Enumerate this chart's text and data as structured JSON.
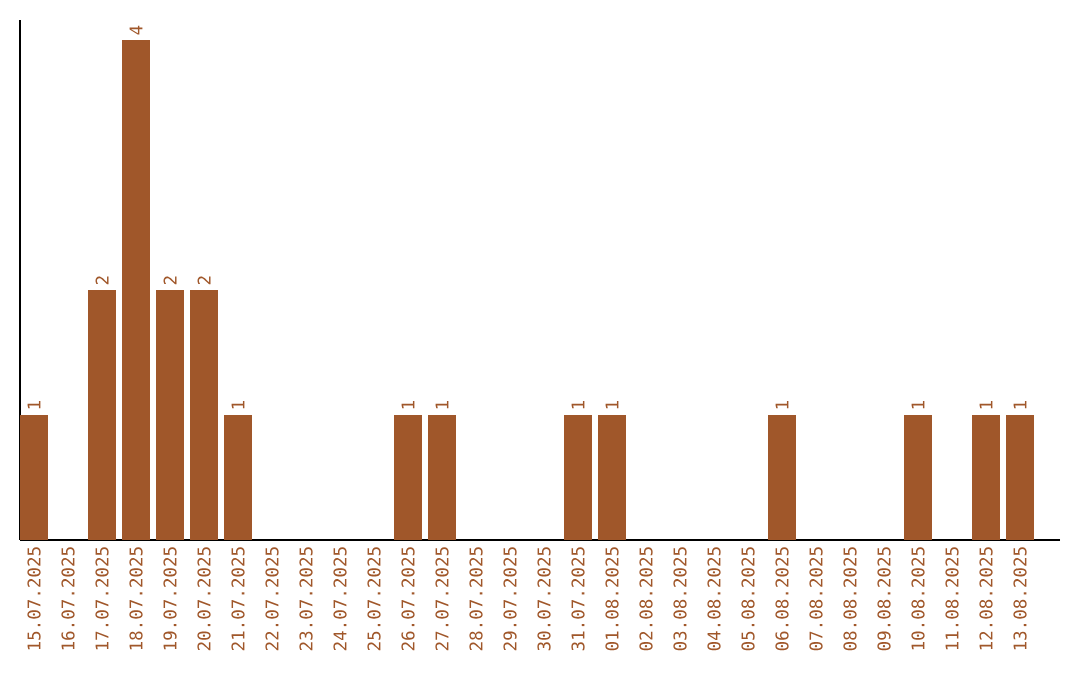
{
  "chart_data": {
    "type": "bar",
    "categories": [
      "15.07.2025",
      "16.07.2025",
      "17.07.2025",
      "18.07.2025",
      "19.07.2025",
      "20.07.2025",
      "21.07.2025",
      "22.07.2025",
      "23.07.2025",
      "24.07.2025",
      "25.07.2025",
      "26.07.2025",
      "27.07.2025",
      "28.07.2025",
      "29.07.2025",
      "30.07.2025",
      "31.07.2025",
      "01.08.2025",
      "02.08.2025",
      "03.08.2025",
      "04.08.2025",
      "05.08.2025",
      "06.08.2025",
      "07.08.2025",
      "08.08.2025",
      "09.08.2025",
      "10.08.2025",
      "11.08.2025",
      "12.08.2025",
      "13.08.2025"
    ],
    "values": [
      1,
      0,
      2,
      4,
      2,
      2,
      1,
      0,
      0,
      0,
      0,
      1,
      1,
      0,
      0,
      0,
      1,
      1,
      0,
      0,
      0,
      0,
      1,
      0,
      0,
      0,
      1,
      0,
      1,
      1
    ],
    "value_labels": [
      "1",
      null,
      "2",
      "4",
      "2",
      "2",
      "1",
      null,
      null,
      null,
      null,
      "1",
      "1",
      null,
      null,
      null,
      "1",
      "1",
      null,
      null,
      null,
      null,
      "1",
      null,
      null,
      null,
      "1",
      null,
      "1",
      "1"
    ],
    "color": "#a0572a",
    "tick_labels": "x"
  }
}
